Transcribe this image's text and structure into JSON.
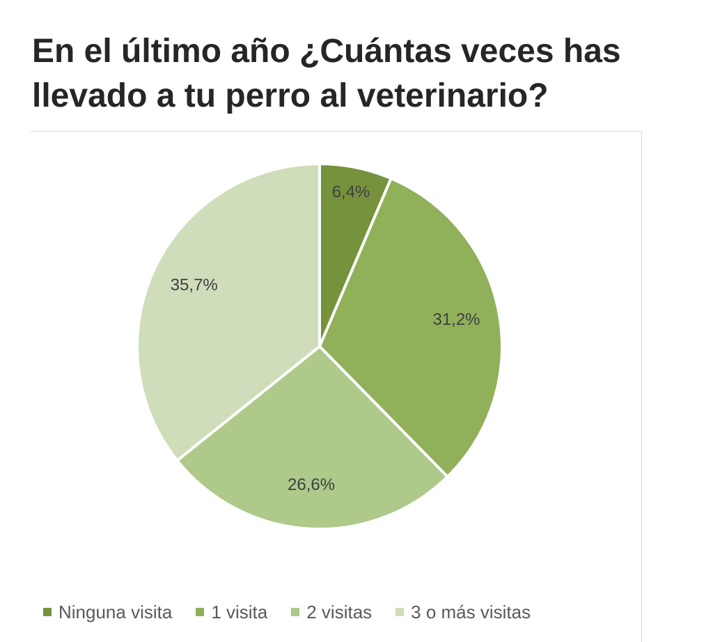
{
  "title": "En el último año ¿Cuántas veces has llevado a tu perro al veterinario?",
  "chart_data": {
    "type": "pie",
    "title": "En el último año ¿Cuántas veces has llevado a tu perro al veterinario?",
    "categories": [
      "Ninguna visita",
      "1 visita",
      "2 visitas",
      "3 o más visitas"
    ],
    "values": [
      6.4,
      31.2,
      26.6,
      35.7
    ],
    "labels": [
      "6,4%",
      "31,2%",
      "26,6%",
      "35,7%"
    ],
    "unit": "%",
    "colors": [
      "#76923c",
      "#91b05a",
      "#aec98a",
      "#cfddbb"
    ],
    "start_angle": "12 o'clock",
    "direction": "clockwise",
    "legend_position": "bottom"
  }
}
